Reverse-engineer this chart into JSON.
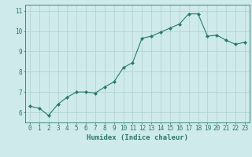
{
  "x": [
    0,
    1,
    2,
    3,
    4,
    5,
    6,
    7,
    8,
    9,
    10,
    11,
    12,
    13,
    14,
    15,
    16,
    17,
    18,
    19,
    20,
    21,
    22,
    23
  ],
  "y": [
    6.3,
    6.2,
    5.85,
    6.4,
    6.75,
    7.0,
    7.0,
    6.95,
    7.25,
    7.5,
    8.2,
    8.45,
    9.65,
    9.75,
    9.95,
    10.15,
    10.35,
    10.85,
    10.85,
    9.75,
    9.8,
    9.55,
    9.35,
    9.45
  ],
  "line_color": "#2a7a6a",
  "marker": "D",
  "marker_size": 2.0,
  "background_color": "#ceeaea",
  "grid_color": "#b0d0d0",
  "xlabel": "Humidex (Indice chaleur)",
  "xlim": [
    -0.5,
    23.5
  ],
  "ylim": [
    5.5,
    11.3
  ],
  "yticks": [
    6,
    7,
    8,
    9,
    10,
    11
  ],
  "xticks": [
    0,
    1,
    2,
    3,
    4,
    5,
    6,
    7,
    8,
    9,
    10,
    11,
    12,
    13,
    14,
    15,
    16,
    17,
    18,
    19,
    20,
    21,
    22,
    23
  ],
  "label_fontsize": 6.5,
  "tick_fontsize": 5.5
}
